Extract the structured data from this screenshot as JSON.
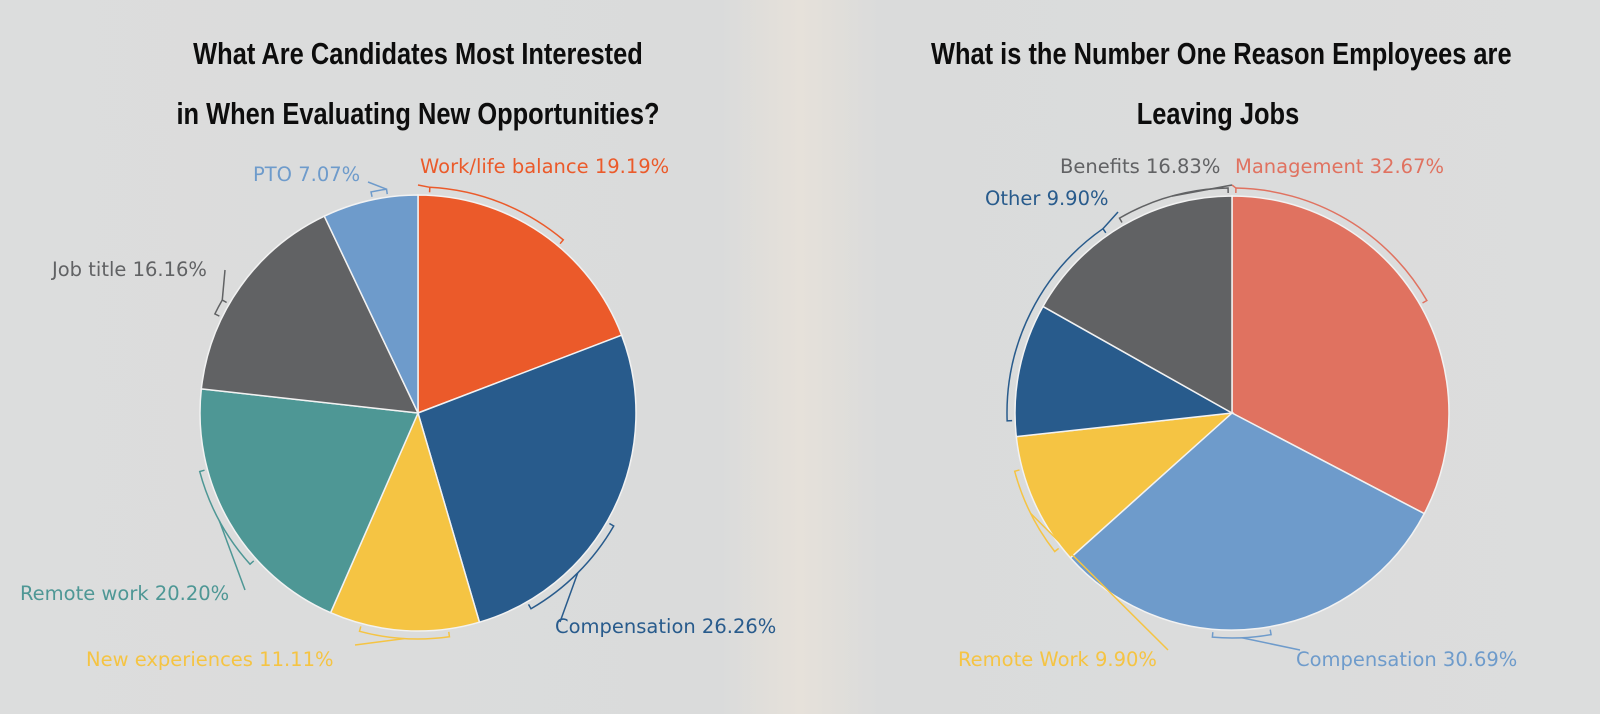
{
  "chart_data": [
    {
      "type": "pie",
      "title_lines": [
        "What Are Candidates Most Interested",
        "in When Evaluating New Opportunities?"
      ],
      "slices": [
        {
          "label": "Work/life balance",
          "value": 19.19,
          "text": "Work/life balance 19.19%",
          "color": "#EB5A2A"
        },
        {
          "label": "Compensation",
          "value": 26.26,
          "text": "Compensation 26.26%",
          "color": "#285B8C"
        },
        {
          "label": "New experiences",
          "value": 11.11,
          "text": "New experiences 11.11%",
          "color": "#F5C443"
        },
        {
          "label": "Remote work",
          "value": 20.2,
          "text": "Remote work 20.20%",
          "color": "#4E9795"
        },
        {
          "label": "Job title",
          "value": 16.16,
          "text": "Job title 16.16%",
          "color": "#616264"
        },
        {
          "label": "PTO",
          "value": 7.07,
          "text": "PTO 7.07%",
          "color": "#6E9BCB"
        }
      ]
    },
    {
      "type": "pie",
      "title_lines": [
        "What is the Number One Reason Employees are",
        "Leaving Jobs"
      ],
      "slices": [
        {
          "label": "Management",
          "value": 32.67,
          "text": "Management 32.67%",
          "color": "#E07260"
        },
        {
          "label": "Compensation",
          "value": 30.69,
          "text": "Compensation 30.69%",
          "color": "#6E9BCB"
        },
        {
          "label": "Remote Work",
          "value": 9.9,
          "text": "Remote Work 9.90%",
          "color": "#F5C443"
        },
        {
          "label": "Other",
          "value": 9.9,
          "text": "Other 9.90%",
          "color": "#285B8C"
        },
        {
          "label": "Benefits",
          "value": 16.83,
          "text": "Benefits 16.83%",
          "color": "#616264"
        }
      ]
    }
  ]
}
